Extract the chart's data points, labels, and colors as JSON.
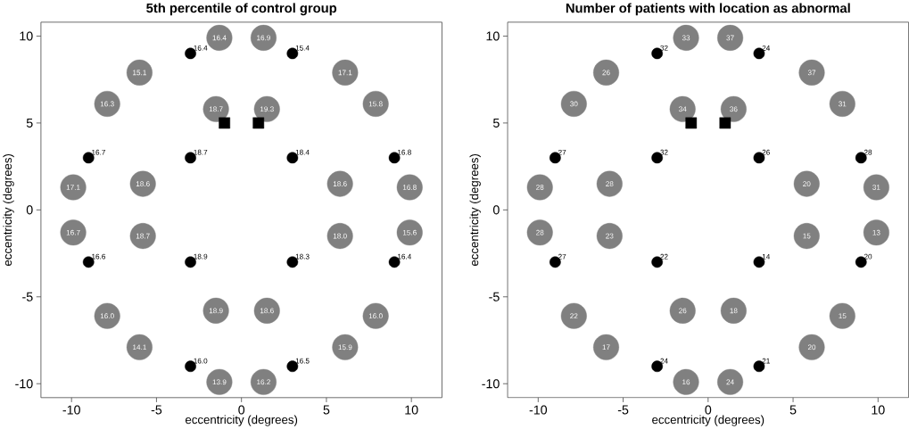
{
  "chart_data": [
    {
      "type": "scatter",
      "title": "5th percentile of control group",
      "xlabel": "eccentricity (degrees)",
      "ylabel": "eccentricity (degrees)",
      "xlim": [
        -11.8,
        11.8
      ],
      "ylim": [
        -10.8,
        10.8
      ],
      "xticks": [
        -10,
        -5,
        0,
        5,
        10
      ],
      "yticks": [
        -10,
        -5,
        0,
        5,
        10
      ],
      "series": [
        {
          "color": "#808080",
          "marker": "circle",
          "x": [
            -1.3,
            1.3,
            -6,
            6.1,
            -7.9,
            7.9,
            -1.5,
            1.5,
            -9.9,
            9.9,
            -5.8,
            5.8,
            -9.9,
            9.9,
            -5.8,
            5.8,
            -7.9,
            7.9,
            -1.5,
            1.5,
            -6,
            6.1,
            -1.3,
            1.3
          ],
          "values": [
            9.9,
            9.9,
            7.9,
            7.9,
            6.1,
            6.1,
            5.8,
            5.8,
            1.3,
            1.3,
            1.5,
            1.5,
            -1.3,
            -1.3,
            -1.5,
            -1.5,
            -6.1,
            -6.1,
            -5.8,
            -5.8,
            -7.9,
            -7.9,
            -9.9,
            -9.9
          ]
        },
        {
          "color": "#000000",
          "marker": "circle",
          "x": [
            -3,
            3,
            -9,
            -3,
            3,
            9,
            -9,
            -3,
            3,
            9,
            -3,
            3
          ],
          "values": [
            9,
            9,
            3,
            3,
            3,
            3,
            -3,
            -3,
            -3,
            -3,
            -9,
            -9
          ]
        },
        {
          "color": "#000000",
          "marker": "square",
          "x": [
            -1,
            1
          ],
          "values": [
            5,
            5
          ]
        }
      ],
      "annotations": [
        {
          "text": "16.4",
          "x": -1.3,
          "y": 9.9
        },
        {
          "text": "16.9",
          "x": 1.3,
          "y": 9.9
        },
        {
          "text": "15.1",
          "x": -6,
          "y": 7.9
        },
        {
          "text": "17.1",
          "x": 6.1,
          "y": 7.9
        },
        {
          "text": "16.3",
          "x": -7.9,
          "y": 6.1
        },
        {
          "text": "15.8",
          "x": 7.9,
          "y": 6.1
        },
        {
          "text": "18.7",
          "x": -1.5,
          "y": 5.8
        },
        {
          "text": "19.3",
          "x": 1.5,
          "y": 5.8
        },
        {
          "text": "17.1",
          "x": -9.9,
          "y": 1.3
        },
        {
          "text": "16.8",
          "x": 9.9,
          "y": 1.3
        },
        {
          "text": "18.6",
          "x": -5.8,
          "y": 1.5
        },
        {
          "text": "18.6",
          "x": 5.8,
          "y": 1.5
        },
        {
          "text": "16.7",
          "x": -9.9,
          "y": -1.3
        },
        {
          "text": "15.6",
          "x": 9.9,
          "y": -1.3
        },
        {
          "text": "18.7",
          "x": -5.8,
          "y": -1.5
        },
        {
          "text": "18.0",
          "x": 5.8,
          "y": -1.5
        },
        {
          "text": "16.0",
          "x": -7.9,
          "y": -6.1
        },
        {
          "text": "16.0",
          "x": 7.9,
          "y": -6.1
        },
        {
          "text": "18.9",
          "x": -1.5,
          "y": -5.8
        },
        {
          "text": "18.6",
          "x": 1.5,
          "y": -5.8
        },
        {
          "text": "14.1",
          "x": -6,
          "y": -7.9
        },
        {
          "text": "15.9",
          "x": 6.1,
          "y": -7.9
        },
        {
          "text": "13.9",
          "x": -1.3,
          "y": -9.9
        },
        {
          "text": "16.2",
          "x": 1.3,
          "y": -9.9
        },
        {
          "text": "16.4",
          "x": -3,
          "y": 9
        },
        {
          "text": "15.4",
          "x": 3,
          "y": 9
        },
        {
          "text": "16.7",
          "x": -9,
          "y": 3
        },
        {
          "text": "18.7",
          "x": -3,
          "y": 3
        },
        {
          "text": "18.4",
          "x": 3,
          "y": 3
        },
        {
          "text": "16.8",
          "x": 9,
          "y": 3
        },
        {
          "text": "16.6",
          "x": -9,
          "y": -3
        },
        {
          "text": "18.9",
          "x": -3,
          "y": -3
        },
        {
          "text": "18.3",
          "x": 3,
          "y": -3
        },
        {
          "text": "16.4",
          "x": 9,
          "y": -3
        },
        {
          "text": "16.0",
          "x": -3,
          "y": -9
        },
        {
          "text": "16.5",
          "x": 3,
          "y": -9
        }
      ]
    },
    {
      "type": "scatter",
      "title": "Number of patients with location as abnormal",
      "xlabel": "eccentricity (degrees)",
      "ylabel": "eccentricity (degrees)",
      "xlim": [
        -11.8,
        11.8
      ],
      "ylim": [
        -10.8,
        10.8
      ],
      "xticks": [
        -10,
        -5,
        0,
        5,
        10
      ],
      "yticks": [
        -10,
        -5,
        0,
        5,
        10
      ],
      "series": [
        {
          "color": "#808080",
          "marker": "circle",
          "x": [
            -1.3,
            1.3,
            -6,
            6.1,
            -7.9,
            7.9,
            -1.5,
            1.5,
            -9.9,
            9.9,
            -5.8,
            5.8,
            -9.9,
            9.9,
            -5.8,
            5.8,
            -7.9,
            7.9,
            -1.5,
            1.5,
            -6,
            6.1,
            -1.3,
            1.3
          ],
          "values": [
            9.9,
            9.9,
            7.9,
            7.9,
            6.1,
            6.1,
            5.8,
            5.8,
            1.3,
            1.3,
            1.5,
            1.5,
            -1.3,
            -1.3,
            -1.5,
            -1.5,
            -6.1,
            -6.1,
            -5.8,
            -5.8,
            -7.9,
            -7.9,
            -9.9,
            -9.9
          ]
        },
        {
          "color": "#000000",
          "marker": "circle",
          "x": [
            -3,
            3,
            -9,
            -3,
            3,
            9,
            -9,
            -3,
            3,
            9,
            -3,
            3
          ],
          "values": [
            9,
            9,
            3,
            3,
            3,
            3,
            -3,
            -3,
            -3,
            -3,
            -9,
            -9
          ]
        },
        {
          "color": "#000000",
          "marker": "square",
          "x": [
            -1,
            1
          ],
          "values": [
            5,
            5
          ]
        }
      ],
      "annotations": [
        {
          "text": "33",
          "x": -1.3,
          "y": 9.9
        },
        {
          "text": "37",
          "x": 1.3,
          "y": 9.9
        },
        {
          "text": "26",
          "x": -6,
          "y": 7.9
        },
        {
          "text": "37",
          "x": 6.1,
          "y": 7.9
        },
        {
          "text": "30",
          "x": -7.9,
          "y": 6.1
        },
        {
          "text": "31",
          "x": 7.9,
          "y": 6.1
        },
        {
          "text": "34",
          "x": -1.5,
          "y": 5.8
        },
        {
          "text": "36",
          "x": 1.5,
          "y": 5.8
        },
        {
          "text": "28",
          "x": -9.9,
          "y": 1.3
        },
        {
          "text": "31",
          "x": 9.9,
          "y": 1.3
        },
        {
          "text": "28",
          "x": -5.8,
          "y": 1.5
        },
        {
          "text": "20",
          "x": 5.8,
          "y": 1.5
        },
        {
          "text": "28",
          "x": -9.9,
          "y": -1.3
        },
        {
          "text": "13",
          "x": 9.9,
          "y": -1.3
        },
        {
          "text": "23",
          "x": -5.8,
          "y": -1.5
        },
        {
          "text": "15",
          "x": 5.8,
          "y": -1.5
        },
        {
          "text": "22",
          "x": -7.9,
          "y": -6.1
        },
        {
          "text": "15",
          "x": 7.9,
          "y": -6.1
        },
        {
          "text": "26",
          "x": -1.5,
          "y": -5.8
        },
        {
          "text": "18",
          "x": 1.5,
          "y": -5.8
        },
        {
          "text": "17",
          "x": -6,
          "y": -7.9
        },
        {
          "text": "20",
          "x": 6.1,
          "y": -7.9
        },
        {
          "text": "16",
          "x": -1.3,
          "y": -9.9
        },
        {
          "text": "24",
          "x": 1.3,
          "y": -9.9
        },
        {
          "text": "32",
          "x": -3,
          "y": 9
        },
        {
          "text": "24",
          "x": 3,
          "y": 9
        },
        {
          "text": "27",
          "x": -9,
          "y": 3
        },
        {
          "text": "32",
          "x": -3,
          "y": 3
        },
        {
          "text": "26",
          "x": 3,
          "y": 3
        },
        {
          "text": "28",
          "x": 9,
          "y": 3
        },
        {
          "text": "27",
          "x": -9,
          "y": -3
        },
        {
          "text": "22",
          "x": -3,
          "y": -3
        },
        {
          "text": "14",
          "x": 3,
          "y": -3
        },
        {
          "text": "20",
          "x": 9,
          "y": -3
        },
        {
          "text": "24",
          "x": -3,
          "y": -9
        },
        {
          "text": "21",
          "x": 3,
          "y": -9
        }
      ]
    }
  ]
}
